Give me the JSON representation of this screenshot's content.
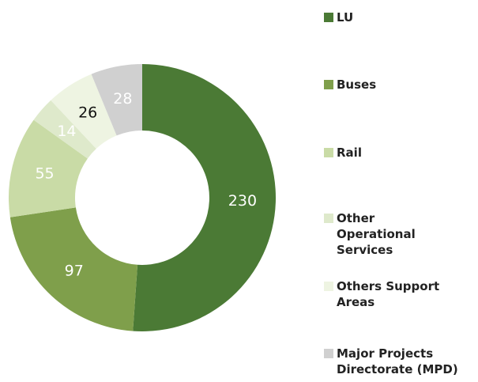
{
  "chart_data": {
    "type": "donut",
    "categories": [
      "LU",
      "Buses",
      "Rail",
      "Other Operational Services",
      "Others Support Areas",
      "Major Projects Directorate (MPD)"
    ],
    "values": [
      230,
      97,
      55,
      14,
      26,
      28
    ],
    "colors": [
      "#4b7a35",
      "#7f9f4b",
      "#c9dba6",
      "#dee9cb",
      "#eef4e2",
      "#d0d0d0"
    ],
    "label_colors": [
      "#ffffff",
      "#ffffff",
      "#ffffff",
      "#ffffff",
      "#111111",
      "#ffffff"
    ]
  }
}
